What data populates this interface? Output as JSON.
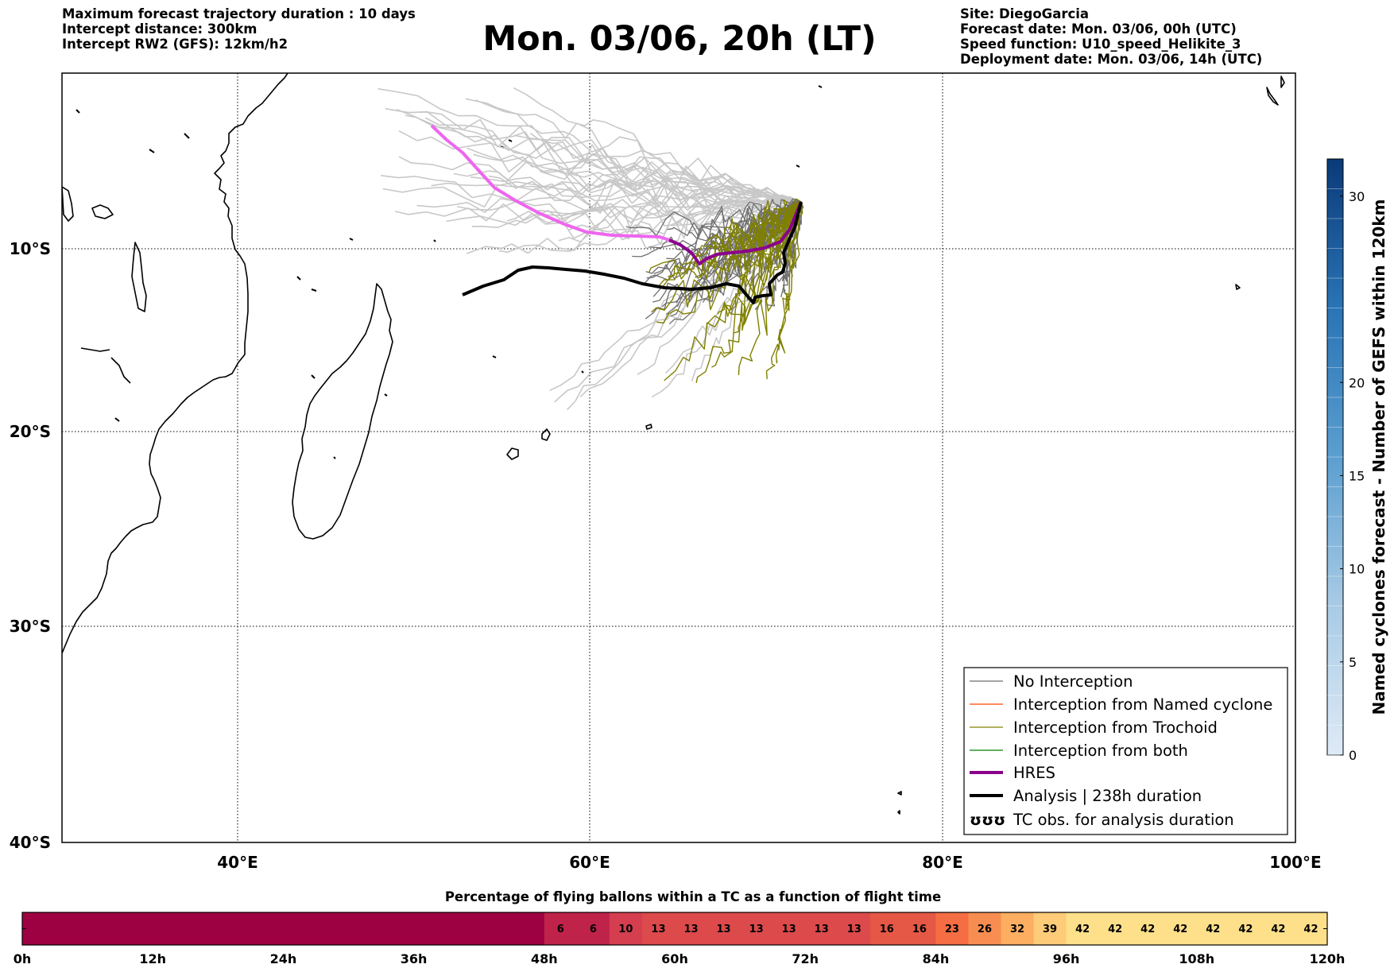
{
  "header": {
    "left": [
      "Maximum forecast trajectory duration : 10 days",
      "Intercept distance: 300km",
      "Intercept RW2 (GFS):  12km/h2"
    ],
    "title": "Mon. 03/06, 20h (LT)",
    "right": [
      "Site: DiegoGarcia",
      "Forecast date: Mon. 03/06, 00h (UTC)",
      "Speed function: U10_speed_Helikite_3",
      "Deployment date: Mon. 03/06, 14h (UTC)"
    ]
  },
  "map": {
    "lon_range": [
      30,
      100
    ],
    "lat_range": [
      -40,
      0
    ],
    "lat_ticks": [
      {
        "value": -10,
        "label": "10°S"
      },
      {
        "value": -20,
        "label": "20°S"
      },
      {
        "value": -30,
        "label": "30°S"
      },
      {
        "value": -40,
        "label": "40°S"
      }
    ],
    "lon_ticks": [
      {
        "value": 40,
        "label": "40°E"
      },
      {
        "value": 60,
        "label": "60°E"
      },
      {
        "value": 80,
        "label": "80°E"
      },
      {
        "value": 100,
        "label": "100°E"
      }
    ],
    "colors": {
      "gefs_no_interception": "#c8c8c8",
      "no_interception": "#6e6e6e",
      "named_cyclone": "#ff4500",
      "trochoid": "#808000",
      "both": "#008000",
      "hres_early": "#ee66ee",
      "hres_late": "#8b008b",
      "analysis": "#000000"
    }
  },
  "legend": {
    "items": [
      {
        "label": "No Interception",
        "color": "#6e6e6e",
        "width": 1.2
      },
      {
        "label": "Interception from Named cyclone",
        "color": "#ff4500",
        "width": 1.2
      },
      {
        "label": "Interception from Trochoid",
        "color": "#808000",
        "width": 1.2
      },
      {
        "label": "Interception from both",
        "color": "#008000",
        "width": 1.2
      },
      {
        "label": "HRES",
        "color": "#8b008b",
        "width": 4
      },
      {
        "label": "Analysis | 238h duration",
        "color": "#000000",
        "width": 4
      },
      {
        "label": "TC obs. for analysis duration",
        "symbol": "ʊʊʊ"
      }
    ]
  },
  "colorbar": {
    "label": "Named cyclones forecast - Number of GEFS within 120km",
    "ticks": [
      0,
      5,
      10,
      15,
      20,
      30
    ],
    "min": 0,
    "max": 32
  },
  "percent_bar": {
    "title": "Percentage of flying ballons within a TC as a function of flight time",
    "time_labels": [
      "0h",
      "12h",
      "24h",
      "36h",
      "48h",
      "60h",
      "72h",
      "84h",
      "96h",
      "108h",
      "120h"
    ],
    "values": [
      0,
      0,
      0,
      0,
      0,
      0,
      0,
      0,
      0,
      0,
      0,
      0,
      0,
      0,
      0,
      0,
      6,
      6,
      10,
      13,
      13,
      13,
      13,
      13,
      13,
      13,
      16,
      16,
      23,
      26,
      32,
      39,
      42,
      42,
      42,
      42,
      42,
      42,
      42,
      42
    ]
  }
}
